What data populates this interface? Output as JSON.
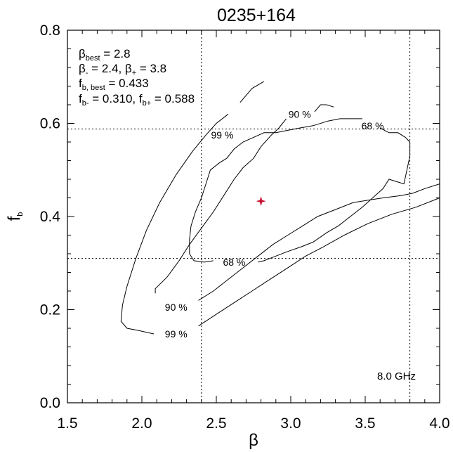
{
  "chart_data": {
    "type": "contour",
    "title": "0235+164",
    "xlabel": "β",
    "ylabel": {
      "base": "f",
      "sub": "b"
    },
    "xlim": [
      1.5,
      4.0
    ],
    "ylim": [
      0.0,
      0.8
    ],
    "xticks": [
      "1.5",
      "2.0",
      "2.5",
      "3.0",
      "3.5",
      "4.0"
    ],
    "yticks": [
      "0.0",
      "0.2",
      "0.4",
      "0.6",
      "0.8"
    ],
    "xtick_values": [
      1.5,
      2.0,
      2.5,
      3.0,
      3.5,
      4.0
    ],
    "ytick_values": [
      0.0,
      0.2,
      0.4,
      0.6,
      0.8
    ],
    "grid": false,
    "best_fit": {
      "beta": 2.8,
      "fb": 0.433,
      "marker": "star",
      "color": "#c8102e"
    },
    "reference_lines": {
      "beta": [
        2.4,
        3.8
      ],
      "fb": [
        0.31,
        0.588
      ]
    },
    "annotations": {
      "beta_best": {
        "base": "β",
        "sub": "best",
        "text": " =  2.8"
      },
      "beta_range": {
        "base1": "β",
        "sub1": "-",
        "text1": " =  2.4, ",
        "base2": "β",
        "sub2": "+",
        "text2": " =  3.8"
      },
      "fb_best": {
        "base": "f",
        "sub": "b, best",
        "text": " =  0.433"
      },
      "fb_range": {
        "base1": "f",
        "sub1": "b-",
        "text1": " =  0.310, ",
        "base2": "f",
        "sub2": "b+",
        "text2": " =  0.588"
      },
      "frequency": "8.0 GHz"
    },
    "contours": [
      {
        "level": "68 %",
        "label_positions": [
          [
            2.62,
            0.302
          ],
          [
            3.55,
            0.595
          ]
        ],
        "segments": [
          [
            [
              2.48,
              0.305
            ],
            [
              2.42,
              0.302
            ],
            [
              2.35,
              0.305
            ],
            [
              2.32,
              0.32
            ],
            [
              2.32,
              0.35
            ],
            [
              2.33,
              0.38
            ],
            [
              2.36,
              0.41
            ],
            [
              2.4,
              0.44
            ],
            [
              2.43,
              0.47
            ],
            [
              2.46,
              0.5
            ],
            [
              2.52,
              0.515
            ],
            [
              2.57,
              0.525
            ],
            [
              2.62,
              0.545
            ],
            [
              2.68,
              0.56
            ],
            [
              2.75,
              0.57
            ],
            [
              2.82,
              0.58
            ],
            [
              2.9,
              0.58
            ],
            [
              2.98,
              0.585
            ],
            [
              3.06,
              0.59
            ],
            [
              3.15,
              0.595
            ],
            [
              3.25,
              0.605
            ],
            [
              3.33,
              0.61
            ],
            [
              3.42,
              0.61
            ],
            [
              3.48,
              0.61
            ]
          ],
          [
            [
              3.6,
              0.59
            ],
            [
              3.66,
              0.58
            ],
            [
              3.72,
              0.58
            ],
            [
              3.77,
              0.57
            ],
            [
              3.8,
              0.56
            ],
            [
              3.8,
              0.53
            ],
            [
              3.78,
              0.5
            ],
            [
              3.76,
              0.47
            ],
            [
              3.66,
              0.48
            ],
            [
              3.62,
              0.46
            ],
            [
              3.55,
              0.44
            ],
            [
              3.48,
              0.42
            ],
            [
              3.4,
              0.4
            ],
            [
              3.32,
              0.38
            ],
            [
              3.24,
              0.365
            ],
            [
              3.15,
              0.345
            ],
            [
              3.07,
              0.335
            ],
            [
              2.98,
              0.325
            ],
            [
              2.9,
              0.315
            ],
            [
              2.82,
              0.305
            ],
            [
              2.78,
              0.302
            ]
          ]
        ]
      },
      {
        "level": "90 %",
        "label_positions": [
          [
            3.06,
            0.62
          ],
          [
            2.23,
            0.205
          ]
        ],
        "segments": [
          [
            [
              2.97,
              0.61
            ],
            [
              2.92,
              0.59
            ],
            [
              2.87,
              0.575
            ],
            [
              2.8,
              0.55
            ],
            [
              2.75,
              0.525
            ],
            [
              2.68,
              0.505
            ],
            [
              2.62,
              0.48
            ],
            [
              2.55,
              0.445
            ],
            [
              2.48,
              0.41
            ],
            [
              2.4,
              0.375
            ],
            [
              2.32,
              0.34
            ],
            [
              2.25,
              0.305
            ],
            [
              2.17,
              0.27
            ],
            [
              2.09,
              0.245
            ],
            [
              2.09,
              0.235
            ]
          ],
          [
            [
              2.38,
              0.22
            ],
            [
              2.48,
              0.24
            ],
            [
              2.58,
              0.265
            ],
            [
              2.68,
              0.29
            ],
            [
              2.78,
              0.315
            ],
            [
              2.88,
              0.34
            ],
            [
              2.98,
              0.36
            ],
            [
              3.08,
              0.38
            ],
            [
              3.18,
              0.4
            ],
            [
              3.3,
              0.415
            ],
            [
              3.42,
              0.43
            ],
            [
              3.52,
              0.435
            ],
            [
              3.62,
              0.44
            ],
            [
              3.74,
              0.445
            ],
            [
              3.82,
              0.45
            ],
            [
              3.9,
              0.46
            ],
            [
              4.0,
              0.47
            ]
          ],
          [
            [
              3.16,
              0.625
            ],
            [
              3.2,
              0.64
            ],
            [
              3.24,
              0.64
            ],
            [
              3.29,
              0.635
            ]
          ]
        ]
      },
      {
        "level": "99 %",
        "label_positions": [
          [
            2.54,
            0.575
          ],
          [
            2.23,
            0.148
          ]
        ],
        "segments": [
          [
            [
              2.58,
              0.62
            ],
            [
              2.5,
              0.6
            ],
            [
              2.43,
              0.575
            ],
            [
              2.34,
              0.54
            ],
            [
              2.23,
              0.49
            ],
            [
              2.12,
              0.43
            ],
            [
              2.03,
              0.37
            ],
            [
              1.96,
              0.31
            ],
            [
              1.9,
              0.25
            ],
            [
              1.87,
              0.21
            ],
            [
              1.86,
              0.175
            ],
            [
              1.9,
              0.16
            ],
            [
              1.98,
              0.155
            ],
            [
              2.05,
              0.15
            ],
            [
              2.08,
              0.148
            ]
          ],
          [
            [
              2.38,
              0.165
            ],
            [
              2.5,
              0.19
            ],
            [
              2.62,
              0.215
            ],
            [
              2.74,
              0.24
            ],
            [
              2.86,
              0.265
            ],
            [
              2.98,
              0.29
            ],
            [
              3.1,
              0.315
            ],
            [
              3.22,
              0.335
            ],
            [
              3.36,
              0.36
            ],
            [
              3.52,
              0.385
            ],
            [
              3.68,
              0.405
            ],
            [
              3.84,
              0.42
            ],
            [
              4.0,
              0.44
            ]
          ],
          [
            [
              2.66,
              0.645
            ],
            [
              2.74,
              0.675
            ],
            [
              2.82,
              0.69
            ]
          ]
        ]
      }
    ]
  }
}
